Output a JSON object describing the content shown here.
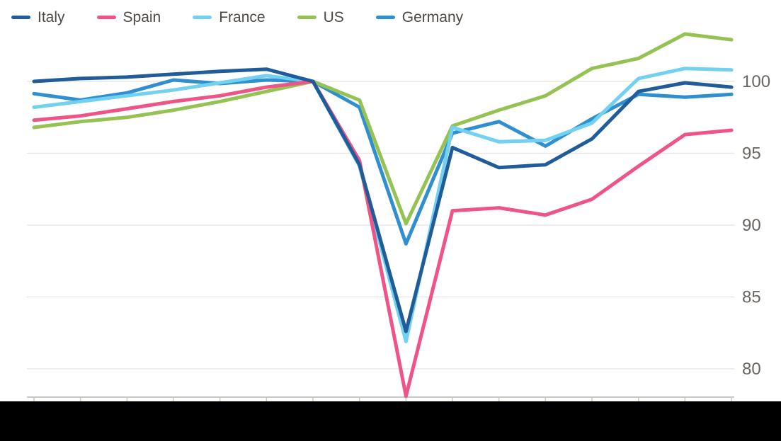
{
  "chart_data": {
    "type": "line",
    "title": "",
    "xlabel": "",
    "ylabel": "",
    "x_axis_note": "quarterly points; x tick labels hidden by black redaction bar",
    "index_note": "GDP index, all series cross 100 at the 7th point (pre-pandemic base quarter)",
    "yticks": [
      100,
      95,
      90,
      85,
      80
    ],
    "ylim_visible": [
      78,
      103.5
    ],
    "grid": "horizontal",
    "legend_position": "top-left",
    "n_points": 16,
    "series": [
      {
        "name": "Germany",
        "color": "#2f8fd0",
        "values": [
          99.15,
          98.7,
          99.2,
          100.1,
          99.85,
          100.1,
          100.0,
          98.2,
          88.7,
          96.4,
          97.2,
          95.5,
          97.4,
          99.1,
          98.9,
          99.1
        ]
      },
      {
        "name": "US",
        "color": "#95c353",
        "values": [
          96.8,
          97.2,
          97.5,
          98.0,
          98.6,
          99.3,
          100.0,
          98.7,
          90.1,
          96.9,
          98.0,
          99.0,
          100.9,
          101.6,
          103.3,
          102.9
        ]
      },
      {
        "name": "France",
        "color": "#72d1f0",
        "values": [
          98.2,
          98.6,
          99.0,
          99.4,
          99.9,
          100.4,
          100.0,
          94.1,
          81.9,
          96.8,
          95.8,
          95.9,
          97.1,
          100.2,
          100.9,
          100.8
        ]
      },
      {
        "name": "Spain",
        "color": "#ee5586",
        "values": [
          97.3,
          97.6,
          98.1,
          98.6,
          99.0,
          99.6,
          100.0,
          94.5,
          78.1,
          91.0,
          91.2,
          90.7,
          91.8,
          94.1,
          96.3,
          96.6
        ]
      },
      {
        "name": "Italy",
        "color": "#1f5c99",
        "values": [
          100.0,
          100.2,
          100.3,
          100.5,
          100.7,
          100.85,
          100.0,
          94.2,
          82.6,
          95.4,
          94.0,
          94.2,
          96.0,
          99.3,
          99.9,
          99.6
        ]
      }
    ],
    "legend_order": [
      "Italy",
      "Spain",
      "France",
      "US",
      "Germany"
    ],
    "theme": {
      "background": "#ffffff",
      "gridline_color": "#e9e7e4",
      "axis_line_color": "#cbc8c4",
      "tick_color": "#cbc8c4",
      "tick_label_color": "#6b6561",
      "legend_label_color": "#4d4945",
      "redaction_color": "#000000"
    }
  }
}
